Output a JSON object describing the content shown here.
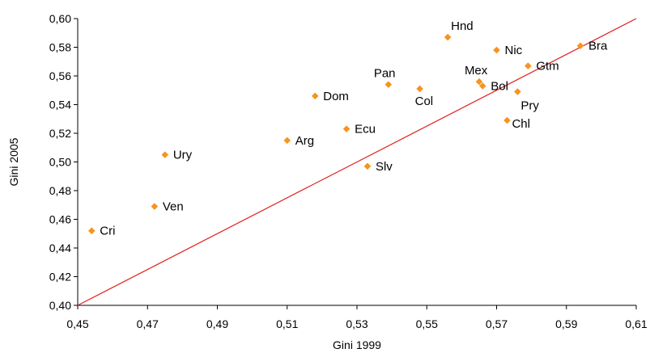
{
  "chart_data": {
    "type": "scatter",
    "xlabel": "Gini 1999",
    "ylabel": "Gini 2005",
    "xlim": [
      0.45,
      0.61
    ],
    "ylim": [
      0.4,
      0.6
    ],
    "xticks": [
      "0,45",
      "0,47",
      "0,49",
      "0,51",
      "0,53",
      "0,55",
      "0,57",
      "0,59",
      "0,61"
    ],
    "yticks": [
      "0,40",
      "0,42",
      "0,44",
      "0,46",
      "0,48",
      "0,50",
      "0,52",
      "0,54",
      "0,56",
      "0,58",
      "0,60"
    ],
    "marker_color": "#f7941d",
    "reference_line": {
      "from": [
        0.45,
        0.4
      ],
      "to": [
        0.61,
        0.6
      ],
      "color": "#e0201b"
    },
    "points": [
      {
        "label": "Cri",
        "x": 0.454,
        "y": 0.452,
        "anchor": "right"
      },
      {
        "label": "Ven",
        "x": 0.472,
        "y": 0.469,
        "anchor": "right"
      },
      {
        "label": "Ury",
        "x": 0.475,
        "y": 0.505,
        "anchor": "right"
      },
      {
        "label": "Arg",
        "x": 0.51,
        "y": 0.515,
        "anchor": "right"
      },
      {
        "label": "Dom",
        "x": 0.518,
        "y": 0.546,
        "anchor": "right"
      },
      {
        "label": "Ecu",
        "x": 0.527,
        "y": 0.523,
        "anchor": "right"
      },
      {
        "label": "Slv",
        "x": 0.533,
        "y": 0.497,
        "anchor": "right"
      },
      {
        "label": "Pan",
        "x": 0.539,
        "y": 0.554,
        "anchor": "above-left"
      },
      {
        "label": "Col",
        "x": 0.548,
        "y": 0.551,
        "anchor": "below"
      },
      {
        "label": "Hnd",
        "x": 0.556,
        "y": 0.587,
        "anchor": "above-right"
      },
      {
        "label": "Mex",
        "x": 0.565,
        "y": 0.556,
        "anchor": "above-left"
      },
      {
        "label": "Bol",
        "x": 0.566,
        "y": 0.553,
        "anchor": "right"
      },
      {
        "label": "Nic",
        "x": 0.57,
        "y": 0.578,
        "anchor": "right"
      },
      {
        "label": "Chl",
        "x": 0.573,
        "y": 0.529,
        "anchor": "right-below"
      },
      {
        "label": "Pry",
        "x": 0.576,
        "y": 0.549,
        "anchor": "below-right"
      },
      {
        "label": "Gtm",
        "x": 0.579,
        "y": 0.567,
        "anchor": "right"
      },
      {
        "label": "Bra",
        "x": 0.594,
        "y": 0.581,
        "anchor": "right"
      }
    ]
  }
}
